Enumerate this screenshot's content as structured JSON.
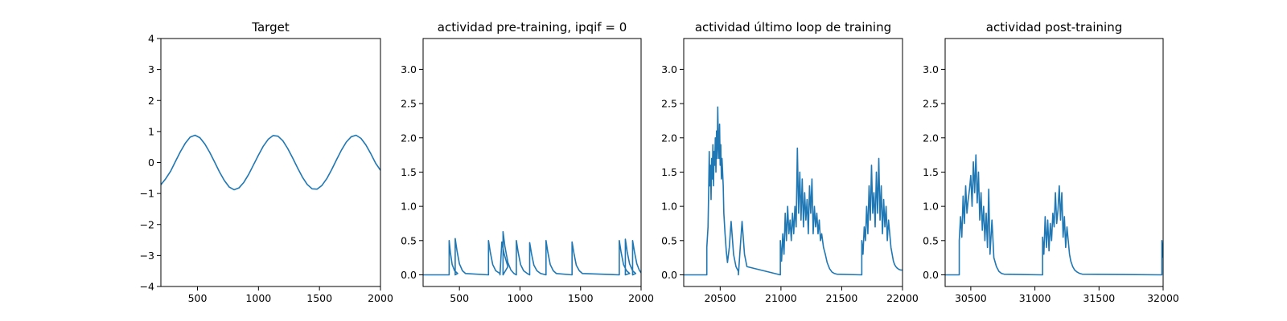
{
  "chart_data": [
    {
      "type": "line",
      "title": "Target",
      "xlim": [
        200,
        2000
      ],
      "ylim": [
        -4,
        4
      ],
      "xticks": [
        500,
        1000,
        1500,
        2000
      ],
      "yticks": [
        -4,
        -3,
        -2,
        -1,
        0,
        1,
        2,
        3,
        4
      ],
      "xticklabels": [
        "500",
        "1000",
        "1500",
        "2000"
      ],
      "yticklabels": [
        "−4",
        "−3",
        "−2",
        "−1",
        "0",
        "1",
        "2",
        "3",
        "4"
      ],
      "grid": false,
      "series": [
        {
          "color": "#1f77b4",
          "x": [
            200,
            240,
            280,
            320,
            360,
            400,
            440,
            480,
            520,
            560,
            600,
            640,
            680,
            720,
            760,
            800,
            840,
            880,
            920,
            960,
            1000,
            1040,
            1080,
            1120,
            1160,
            1200,
            1240,
            1280,
            1320,
            1360,
            1400,
            1440,
            1480,
            1520,
            1560,
            1600,
            1640,
            1680,
            1720,
            1760,
            1800,
            1840,
            1880,
            1920,
            1960,
            2000
          ],
          "y": [
            -0.72,
            -0.52,
            -0.28,
            0.04,
            0.35,
            0.62,
            0.82,
            0.88,
            0.8,
            0.6,
            0.33,
            0.02,
            -0.3,
            -0.58,
            -0.79,
            -0.88,
            -0.82,
            -0.64,
            -0.38,
            -0.07,
            0.24,
            0.53,
            0.75,
            0.87,
            0.85,
            0.7,
            0.45,
            0.15,
            -0.17,
            -0.47,
            -0.71,
            -0.85,
            -0.86,
            -0.74,
            -0.52,
            -0.23,
            0.09,
            0.4,
            0.66,
            0.83,
            0.88,
            0.78,
            0.57,
            0.29,
            -0.02,
            -0.25
          ]
        }
      ]
    },
    {
      "type": "line",
      "title": "actividad pre-training, ipqif = 0",
      "xlim": [
        200,
        2000
      ],
      "ylim": [
        -0.17,
        3.45
      ],
      "xticks": [
        500,
        1000,
        1500,
        2000
      ],
      "yticks": [
        0.0,
        0.5,
        1.0,
        1.5,
        2.0,
        2.5,
        3.0
      ],
      "xticklabels": [
        "500",
        "1000",
        "1500",
        "2000"
      ],
      "yticklabels": [
        "0.0",
        "0.5",
        "1.0",
        "1.5",
        "2.0",
        "2.5",
        "3.0"
      ],
      "grid": false,
      "series": [
        {
          "color": "#1f77b4",
          "x": [
            200,
            415,
            415,
            425,
            440,
            460,
            485,
            465,
            465,
            480,
            500,
            525,
            550,
            740,
            740,
            755,
            775,
            800,
            835,
            835,
            850,
            870,
            900,
            860,
            860,
            875,
            900,
            925,
            950,
            970,
            970,
            985,
            1005,
            1030,
            1060,
            1080,
            1080,
            1095,
            1115,
            1140,
            1170,
            1215,
            1215,
            1230,
            1250,
            1275,
            1300,
            1430,
            1430,
            1445,
            1465,
            1490,
            1515,
            1820,
            1820,
            1835,
            1855,
            1880,
            1905,
            1870,
            1870,
            1885,
            1905,
            1930,
            1955,
            1930,
            1930,
            1945,
            1965,
            1985,
            2000
          ],
          "y": [
            0,
            0,
            0.5,
            0.33,
            0.15,
            0.06,
            0.02,
            0,
            0.53,
            0.35,
            0.16,
            0.06,
            0.02,
            0,
            0.5,
            0.33,
            0.15,
            0.06,
            0.02,
            0,
            0.48,
            0.3,
            0.12,
            0,
            0.63,
            0.42,
            0.18,
            0.07,
            0.02,
            0,
            0.5,
            0.33,
            0.15,
            0.06,
            0.02,
            0,
            0.47,
            0.31,
            0.14,
            0.06,
            0.02,
            0,
            0.5,
            0.33,
            0.15,
            0.06,
            0.02,
            0,
            0.48,
            0.32,
            0.14,
            0.06,
            0.02,
            0,
            0.5,
            0.33,
            0.15,
            0.06,
            0.02,
            0,
            0.52,
            0.34,
            0.16,
            0.06,
            0.02,
            0,
            0.5,
            0.34,
            0.16,
            0.07,
            0.03
          ]
        }
      ]
    },
    {
      "type": "line",
      "title": "actividad último loop de training",
      "xlim": [
        20200,
        22000
      ],
      "ylim": [
        -0.17,
        3.45
      ],
      "xticks": [
        20500,
        21000,
        21500,
        22000
      ],
      "xticklabels": [
        "20500",
        "21000",
        "21500",
        "22000"
      ],
      "yticks": [
        0.0,
        0.5,
        1.0,
        1.5,
        2.0,
        2.5,
        3.0
      ],
      "yticklabels": [
        "0.0",
        "0.5",
        "1.0",
        "1.5",
        "2.0",
        "2.5",
        "3.0"
      ],
      "grid": false,
      "series": [
        {
          "color": "#1f77b4",
          "x": [
            20200,
            20390,
            20390,
            20400,
            20405,
            20410,
            20415,
            20420,
            20425,
            20430,
            20435,
            20440,
            20445,
            20450,
            20455,
            20460,
            20465,
            20470,
            20475,
            20480,
            20485,
            20490,
            20495,
            20500,
            20505,
            20510,
            20515,
            20520,
            20525,
            20530,
            20540,
            20550,
            20560,
            20575,
            20590,
            20610,
            20630,
            20650,
            20650,
            20665,
            20680,
            20700,
            20720,
            20995,
            20995,
            21005,
            21015,
            21025,
            21035,
            21045,
            21055,
            21065,
            21075,
            21085,
            21095,
            21105,
            21115,
            21125,
            21135,
            21145,
            21155,
            21165,
            21175,
            21185,
            21195,
            21205,
            21215,
            21225,
            21235,
            21245,
            21255,
            21265,
            21275,
            21285,
            21295,
            21305,
            21315,
            21325,
            21335,
            21350,
            21365,
            21380,
            21400,
            21420,
            21440,
            21460,
            21665,
            21665,
            21675,
            21685,
            21695,
            21705,
            21715,
            21725,
            21735,
            21745,
            21755,
            21765,
            21775,
            21785,
            21795,
            21805,
            21815,
            21825,
            21835,
            21845,
            21855,
            21865,
            21875,
            21885,
            21895,
            21905,
            21915,
            21925,
            21935,
            21945,
            21955,
            21970,
            21985,
            22000
          ],
          "y": [
            0,
            0,
            0.4,
            0.7,
            1.2,
            1.8,
            1.3,
            1.6,
            1.1,
            1.7,
            1.4,
            1.9,
            1.3,
            1.8,
            1.6,
            2.0,
            1.5,
            2.1,
            1.7,
            2.45,
            1.9,
            1.7,
            2.2,
            1.6,
            1.9,
            1.4,
            1.7,
            1.5,
            1.3,
            0.9,
            0.6,
            0.35,
            0.18,
            0.4,
            0.78,
            0.3,
            0.12,
            0.05,
            0,
            0.4,
            0.78,
            0.3,
            0.12,
            0,
            0.5,
            0.2,
            0.6,
            0.3,
            0.9,
            0.5,
            1.0,
            0.6,
            0.8,
            0.5,
            0.9,
            0.6,
            1.0,
            0.7,
            1.85,
            0.9,
            1.5,
            0.8,
            1.4,
            0.7,
            1.2,
            0.8,
            1.1,
            0.6,
            1.3,
            0.9,
            1.4,
            0.6,
            1.0,
            0.7,
            0.9,
            0.6,
            0.8,
            0.5,
            0.6,
            0.4,
            0.3,
            0.18,
            0.09,
            0.04,
            0.02,
            0.01,
            0,
            0.5,
            0.3,
            0.7,
            0.5,
            1.0,
            0.6,
            1.3,
            0.8,
            1.6,
            0.9,
            1.2,
            0.7,
            1.5,
            0.9,
            1.7,
            0.8,
            1.3,
            0.6,
            1.1,
            0.7,
            1.0,
            0.5,
            0.8,
            0.6,
            0.4,
            0.3,
            0.2,
            0.15,
            0.12,
            0.1,
            0.08,
            0.07,
            0.07
          ]
        }
      ]
    },
    {
      "type": "line",
      "title": "actividad post-training",
      "xlim": [
        30300,
        32000
      ],
      "ylim": [
        -0.17,
        3.45
      ],
      "xticks": [
        30500,
        31000,
        31500,
        32000
      ],
      "xticklabels": [
        "30500",
        "31000",
        "31500",
        "32000"
      ],
      "yticks": [
        0.0,
        0.5,
        1.0,
        1.5,
        2.0,
        2.5,
        3.0
      ],
      "yticklabels": [
        "0.0",
        "0.5",
        "1.0",
        "1.5",
        "2.0",
        "2.5",
        "3.0"
      ],
      "grid": false,
      "series": [
        {
          "color": "#1f77b4",
          "x": [
            30300,
            30410,
            30410,
            30420,
            30430,
            30440,
            30450,
            30460,
            30470,
            30480,
            30490,
            30500,
            30510,
            30520,
            30530,
            30540,
            30550,
            30560,
            30570,
            30580,
            30590,
            30600,
            30610,
            30620,
            30630,
            30640,
            30650,
            30665,
            30680,
            30700,
            30720,
            30740,
            30760,
            31060,
            31060,
            31070,
            31080,
            31090,
            31100,
            31110,
            31120,
            31130,
            31140,
            31150,
            31160,
            31170,
            31180,
            31190,
            31200,
            31210,
            31220,
            31230,
            31240,
            31250,
            31260,
            31270,
            31280,
            31295,
            31310,
            31330,
            31350,
            31370,
            31990,
            31990,
            32000
          ],
          "y": [
            0,
            0,
            0.5,
            0.85,
            0.55,
            1.15,
            0.75,
            1.3,
            0.9,
            1.1,
            1.25,
            1.45,
            1.0,
            1.65,
            1.2,
            1.75,
            1.05,
            1.5,
            0.8,
            1.2,
            0.65,
            1.0,
            0.5,
            0.9,
            0.4,
            1.25,
            0.3,
            0.8,
            0.25,
            0.12,
            0.05,
            0.02,
            0.01,
            0,
            0.55,
            0.3,
            0.85,
            0.4,
            0.8,
            0.35,
            0.75,
            0.5,
            0.9,
            0.7,
            1.2,
            0.75,
            0.95,
            1.3,
            0.8,
            1.2,
            0.55,
            0.85,
            0.4,
            0.7,
            0.5,
            0.3,
            0.2,
            0.12,
            0.07,
            0.04,
            0.02,
            0.01,
            0,
            0.5,
            0.25
          ]
        }
      ]
    }
  ]
}
